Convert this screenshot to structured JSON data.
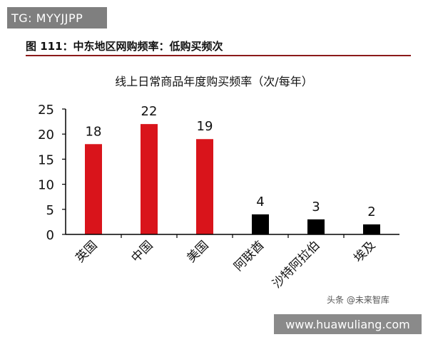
{
  "overlay": {
    "tag": "TG: MYYJJPP",
    "watermark": "头条 @未来智库",
    "url": "www.huawuliang.com"
  },
  "figure": {
    "title": "图 111：中东地区网购频率：低购买频次"
  },
  "chart_data": {
    "type": "bar",
    "title": "线上日常商品年度购买频率（次/每年）",
    "categories": [
      "英国",
      "中国",
      "美国",
      "阿联酋",
      "沙特阿拉伯",
      "埃及"
    ],
    "values": [
      18,
      22,
      19,
      4,
      3,
      2
    ],
    "data_labels": [
      "18",
      "22",
      "19",
      "4",
      "3",
      "2"
    ],
    "bar_colors": [
      "#d9141b",
      "#d9141b",
      "#d9141b",
      "#000000",
      "#000000",
      "#000000"
    ],
    "ylim": [
      0,
      25
    ],
    "yticks": [
      0,
      5,
      10,
      15,
      20,
      25
    ],
    "ytick_labels": [
      "0",
      "5",
      "10",
      "15",
      "20",
      "25"
    ],
    "xlabel": "",
    "ylabel": "",
    "grid": false,
    "legend": "none"
  }
}
